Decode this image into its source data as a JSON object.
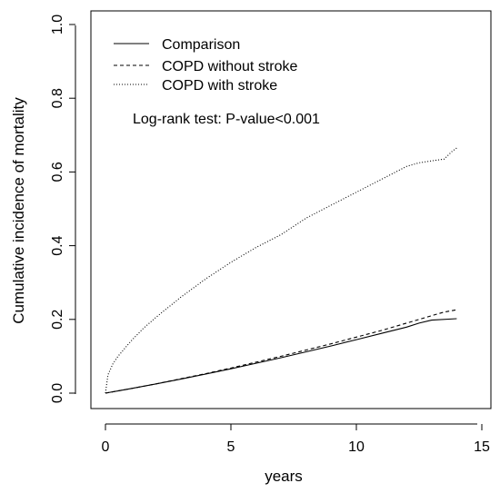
{
  "chart_data": {
    "type": "line",
    "xlabel": "years",
    "ylabel": "Cumulative incidence of mortality",
    "xlim": [
      0,
      15
    ],
    "ylim": [
      0,
      1
    ],
    "x_ticks": [
      "0",
      "5",
      "10",
      "15"
    ],
    "y_ticks": [
      "0.0",
      "0.2",
      "0.4",
      "0.6",
      "0.8",
      "1.0"
    ],
    "grid": false,
    "legend": {
      "position": "top-left",
      "entries": [
        "Comparison",
        "COPD without stroke",
        "COPD with stroke"
      ]
    },
    "annotation": "Log-rank test: P-value<0.001",
    "series": [
      {
        "name": "Comparison",
        "line_style": "solid",
        "x": [
          0,
          1,
          2,
          3,
          4,
          5,
          6,
          7,
          8,
          9,
          10,
          11,
          12,
          12.5,
          13,
          14
        ],
        "y": [
          0,
          0.012,
          0.025,
          0.038,
          0.052,
          0.066,
          0.081,
          0.096,
          0.112,
          0.128,
          0.145,
          0.162,
          0.179,
          0.19,
          0.198,
          0.202
        ]
      },
      {
        "name": "COPD without stroke",
        "line_style": "dashed",
        "x": [
          0,
          1,
          2,
          3,
          4,
          5,
          6,
          7,
          8,
          9,
          10,
          11,
          12,
          12.5,
          13,
          13.5,
          14
        ],
        "y": [
          0,
          0.012,
          0.025,
          0.039,
          0.053,
          0.068,
          0.084,
          0.1,
          0.117,
          0.134,
          0.152,
          0.17,
          0.19,
          0.2,
          0.21,
          0.22,
          0.226
        ]
      },
      {
        "name": "COPD with stroke",
        "line_style": "dotted",
        "x": [
          0,
          0.1,
          0.3,
          0.5,
          1,
          1.5,
          2,
          3,
          4,
          5,
          6,
          7,
          8,
          9,
          10,
          11,
          12,
          12.5,
          13,
          13.5,
          13.8,
          14
        ],
        "y": [
          0,
          0.05,
          0.08,
          0.1,
          0.14,
          0.175,
          0.205,
          0.26,
          0.31,
          0.355,
          0.395,
          0.43,
          0.475,
          0.51,
          0.545,
          0.58,
          0.615,
          0.625,
          0.63,
          0.635,
          0.655,
          0.665
        ]
      }
    ]
  }
}
